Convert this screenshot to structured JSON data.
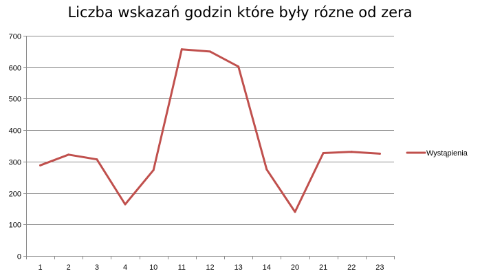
{
  "chart_data": {
    "type": "line",
    "title": "Liczba wskazań godzin które były rózne od zera",
    "xlabel": "",
    "ylabel": "",
    "categories": [
      "1",
      "2",
      "3",
      "4",
      "10",
      "11",
      "12",
      "13",
      "14",
      "20",
      "21",
      "22",
      "23"
    ],
    "series": [
      {
        "name": "Wystąpienia",
        "color": "#C0504D",
        "values": [
          288,
          322,
          307,
          164,
          273,
          657,
          650,
          602,
          275,
          140,
          327,
          331,
          325
        ]
      }
    ],
    "ylim": [
      0,
      700
    ],
    "yticks": [
      "0",
      "100",
      "200",
      "300",
      "400",
      "500",
      "600",
      "700"
    ],
    "grid": true,
    "legend_position": "right"
  }
}
